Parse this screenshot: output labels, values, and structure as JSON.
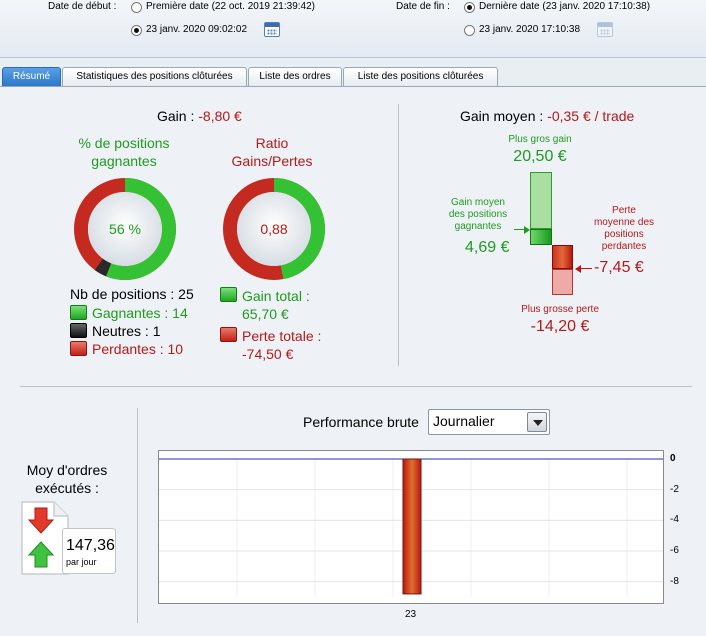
{
  "dates": {
    "start_label": "Date de début :",
    "start_option1": "Première date (22 oct. 2019 21:39:42)",
    "start_option2": "23 janv. 2020 09:02:02",
    "end_label": "Date de fin :",
    "end_option1": "Dernière date (23 janv. 2020 17:10:38)",
    "end_option2": "23 janv. 2020 17:10:38"
  },
  "tabs": [
    {
      "label": "Résumé"
    },
    {
      "label": "Statistiques des positions clôturées"
    },
    {
      "label": "Liste des ordres"
    },
    {
      "label": "Liste des positions clôturées"
    }
  ],
  "summary": {
    "gain_label": "Gain : ",
    "gain_value": "-8,80 €",
    "win_title_1": "% de positions",
    "win_title_2": "gagnantes",
    "win_pct": "56 %",
    "win_fraction": 0.56,
    "neutral_fraction": 0.04,
    "ratio_title_1": "Ratio",
    "ratio_title_2": "Gains/Pertes",
    "ratio_value": "0,88",
    "ratio_fraction": 0.47,
    "nb_positions": "Nb de positions : 25",
    "gagnantes": "Gagnantes : 14",
    "neutres": "Neutres : 1",
    "perdantes": "Perdantes : 10",
    "gain_total_label": "Gain total :",
    "gain_total_value": "65,70 €",
    "perte_totale_label": "Perte totale :",
    "perte_totale_value": "-74,50 €"
  },
  "gain_moyen": {
    "label": "Gain moyen : ",
    "value": "-0,35 € / trade",
    "max_gain_label": "Plus gros gain",
    "max_gain_value": "20,50 €",
    "avg_gain_label_1": "Gain moyen",
    "avg_gain_label_2": "des positions",
    "avg_gain_label_3": "gagnantes",
    "avg_gain_value": "4,69 €",
    "avg_loss_label_1": "Perte",
    "avg_loss_label_2": "moyenne des",
    "avg_loss_label_3": "positions",
    "avg_loss_label_4": "perdantes",
    "avg_loss_value": "-7,45 €",
    "max_loss_label": "Plus grosse perte",
    "max_loss_value": "-14,20 €"
  },
  "orders": {
    "label_1": "Moy d'ordres",
    "label_2": "exécutés :",
    "value": "147,36",
    "unit": "par jour"
  },
  "performance": {
    "label": "Performance brute",
    "period": "Journalier"
  },
  "chart_data": {
    "type": "bar",
    "categories": [
      "23"
    ],
    "values": [
      -8.8
    ],
    "ylim": [
      -9,
      0
    ],
    "yticks": [
      "0",
      "-2",
      "-4",
      "-6",
      "-8"
    ],
    "ytick_values": [
      0,
      -2,
      -4,
      -6,
      -8
    ],
    "grid": true
  }
}
